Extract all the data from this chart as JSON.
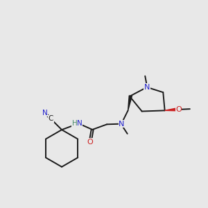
{
  "background_color": "#e8e8e8",
  "bond_color": "#1a1a1a",
  "nitrogen_color": "#2020cc",
  "oxygen_color": "#cc2020",
  "carbon_label_color": "#1a1a1a",
  "h_color": "#4a8a6a",
  "figsize": [
    3.0,
    3.0
  ],
  "dpi": 100,
  "xlim": [
    0,
    10
  ],
  "ylim": [
    0,
    10
  ]
}
